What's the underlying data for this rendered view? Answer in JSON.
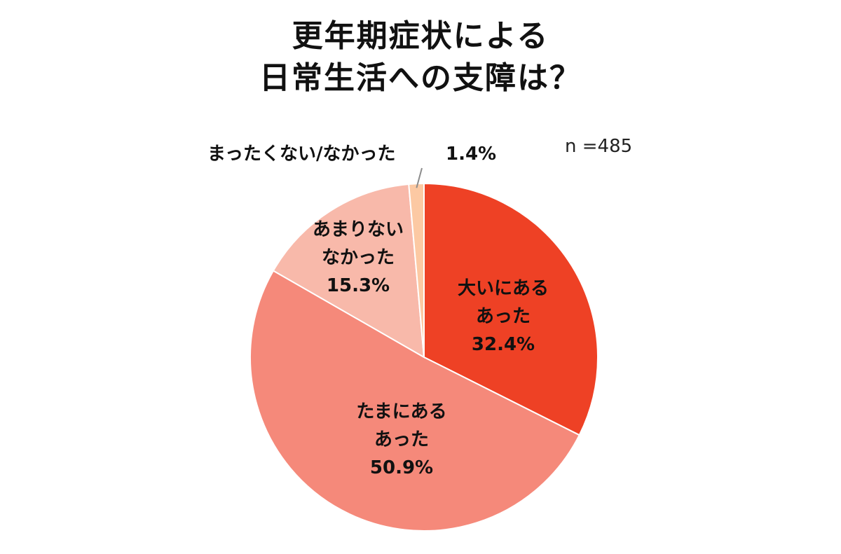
{
  "chart_data": {
    "type": "pie",
    "title_lines": [
      "更年期症状による",
      "日常生活への支障は？"
    ],
    "sample_size": "n =485",
    "slices": [
      {
        "label_lines": [
          "大いにある",
          "あった"
        ],
        "value": 32.4,
        "value_label": "32.4%",
        "color": "#ee4125"
      },
      {
        "label_lines": [
          "たまにある",
          "あった"
        ],
        "value": 50.9,
        "value_label": "50.9%",
        "color": "#f5897a"
      },
      {
        "label_lines": [
          "あまりない",
          "なかった"
        ],
        "value": 15.3,
        "value_label": "15.3%",
        "color": "#f8b9aa"
      },
      {
        "label_lines": [
          "まったくない/なかった"
        ],
        "value": 1.4,
        "value_label": "1.4%",
        "color": "#fcc9a3"
      }
    ],
    "start": "12 o'clock",
    "direction": "clockwise",
    "legend": "none"
  }
}
